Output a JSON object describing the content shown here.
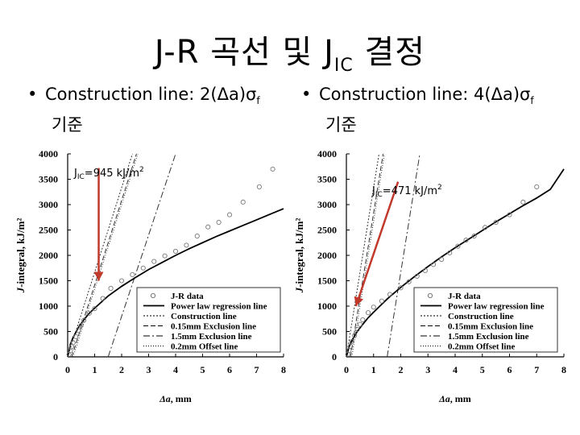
{
  "slide": {
    "title_main": "J-R 곡선 및 J",
    "title_sub": "IC",
    "title_end": " 결정",
    "bullets": [
      {
        "text": "Construction line: 2(Δa)σ",
        "sub": "f",
        "cont": "기준"
      },
      {
        "text": "Construction line: 4(Δa)σ",
        "sub": "f",
        "cont": "기준"
      }
    ]
  },
  "colors": {
    "arrow": "#c0392b",
    "curve": "#000000",
    "data_marker": "#777777"
  },
  "chart_data": [
    {
      "type": "scatter",
      "annotation": {
        "prefix": "J",
        "sub": "IC",
        "text": "=945 kJ/m",
        "sup": "2"
      },
      "xlabel_a": "Δa",
      "xlabel_b": ", mm",
      "ylabel_a": "J",
      "ylabel_b": "-integral, kJ/m²",
      "xlim": [
        0,
        8
      ],
      "ylim": [
        0,
        4000
      ],
      "xticks": [
        0,
        1,
        2,
        3,
        4,
        5,
        6,
        7,
        8
      ],
      "yticks": [
        0,
        500,
        1000,
        1500,
        2000,
        2500,
        3000,
        3500,
        4000
      ],
      "arrow": {
        "from": [
          1.15,
          3720
        ],
        "to": [
          1.15,
          1500
        ]
      },
      "jr_data": {
        "x": [
          0.05,
          0.1,
          0.15,
          0.2,
          0.3,
          0.4,
          0.5,
          0.6,
          0.8,
          1.0,
          1.3,
          1.6,
          2.0,
          2.4,
          2.8,
          3.2,
          3.6,
          4.0,
          4.4,
          4.8,
          5.2,
          5.6,
          6.0,
          6.5,
          7.1,
          7.6
        ],
        "y": [
          50,
          120,
          200,
          280,
          400,
          520,
          620,
          720,
          860,
          950,
          1150,
          1350,
          1500,
          1620,
          1750,
          1880,
          1990,
          2080,
          2200,
          2380,
          2560,
          2650,
          2800,
          3050,
          3350,
          3700
        ]
      },
      "power_law": {
        "x": [
          0,
          0.1,
          0.2,
          0.4,
          0.6,
          0.8,
          1.0,
          1.5,
          2.0,
          2.5,
          3.0,
          3.5,
          4.0,
          4.5,
          5.0,
          5.5,
          6.0,
          6.5,
          7.0,
          7.5,
          8.0
        ],
        "y": [
          0,
          250,
          380,
          580,
          730,
          860,
          960,
          1200,
          1390,
          1560,
          1720,
          1860,
          2000,
          2130,
          2250,
          2370,
          2480,
          2590,
          2700,
          2810,
          2920
        ]
      },
      "construction_line": {
        "x": [
          0,
          2.4
        ],
        "y": [
          0,
          4000
        ]
      },
      "exclusion_015": {
        "x": [
          0.15,
          2.55
        ],
        "y": [
          0,
          4000
        ]
      },
      "exclusion_15": {
        "x": [
          1.5,
          4.0
        ],
        "y": [
          0,
          4000
        ]
      },
      "offset_02": {
        "x": [
          0.2,
          2.6
        ],
        "y": [
          0,
          4000
        ]
      },
      "legend": [
        "J-R data",
        "Power law regression line",
        "Construction line",
        "0.15mm Exclusion line",
        "1.5mm Exclusion line",
        "0.2mm Offset line"
      ]
    },
    {
      "type": "scatter",
      "annotation": {
        "prefix": "J",
        "sub": "IC",
        "text": "=471 kJ/m",
        "sup": "2"
      },
      "xlabel_a": "Δa",
      "xlabel_b": ", mm",
      "ylabel_a": "J",
      "ylabel_b": "-integral, kJ/m²",
      "xlim": [
        0,
        8
      ],
      "ylim": [
        0,
        4000
      ],
      "xticks": [
        0,
        1,
        2,
        3,
        4,
        5,
        6,
        7,
        8
      ],
      "yticks": [
        0,
        500,
        1000,
        1500,
        2000,
        2500,
        3000,
        3500,
        4000
      ],
      "arrow": {
        "from": [
          1.9,
          3450
        ],
        "to": [
          0.35,
          1000
        ]
      },
      "jr_data": {
        "x": [
          0.05,
          0.1,
          0.15,
          0.2,
          0.3,
          0.4,
          0.5,
          0.6,
          0.8,
          1.0,
          1.3,
          1.6,
          2.0,
          2.3,
          2.6,
          2.9,
          3.2,
          3.5,
          3.8,
          4.1,
          4.4,
          4.7,
          5.1,
          5.5,
          6.0,
          6.5,
          7.0
        ],
        "y": [
          50,
          130,
          210,
          300,
          420,
          540,
          640,
          730,
          870,
          980,
          1100,
          1230,
          1360,
          1480,
          1590,
          1700,
          1820,
          1920,
          2050,
          2180,
          2300,
          2380,
          2550,
          2650,
          2800,
          3050,
          3350
        ]
      },
      "power_law": {
        "x": [
          0,
          0.1,
          0.2,
          0.4,
          0.6,
          0.8,
          1.0,
          1.5,
          2.0,
          2.5,
          3.0,
          3.5,
          4.0,
          4.5,
          5.0,
          5.5,
          6.0,
          6.5,
          7.0,
          7.5,
          8.0
        ],
        "y": [
          0,
          200,
          320,
          500,
          640,
          770,
          880,
          1140,
          1370,
          1580,
          1780,
          1970,
          2150,
          2320,
          2490,
          2660,
          2820,
          2980,
          3130,
          3300,
          3700
        ]
      },
      "construction_line": {
        "x": [
          0,
          1.2
        ],
        "y": [
          0,
          4000
        ]
      },
      "exclusion_015": {
        "x": [
          0.15,
          1.35
        ],
        "y": [
          0,
          4000
        ]
      },
      "exclusion_15": {
        "x": [
          1.5,
          2.7
        ],
        "y": [
          0,
          4000
        ]
      },
      "offset_02": {
        "x": [
          0.2,
          1.4
        ],
        "y": [
          0,
          4000
        ]
      },
      "legend": [
        "J-R data",
        "Power law regression line",
        "Construction line",
        "0.15mm Exclusion line",
        "1.5mm Exclusion line",
        "0.2mm Offset line"
      ]
    }
  ]
}
